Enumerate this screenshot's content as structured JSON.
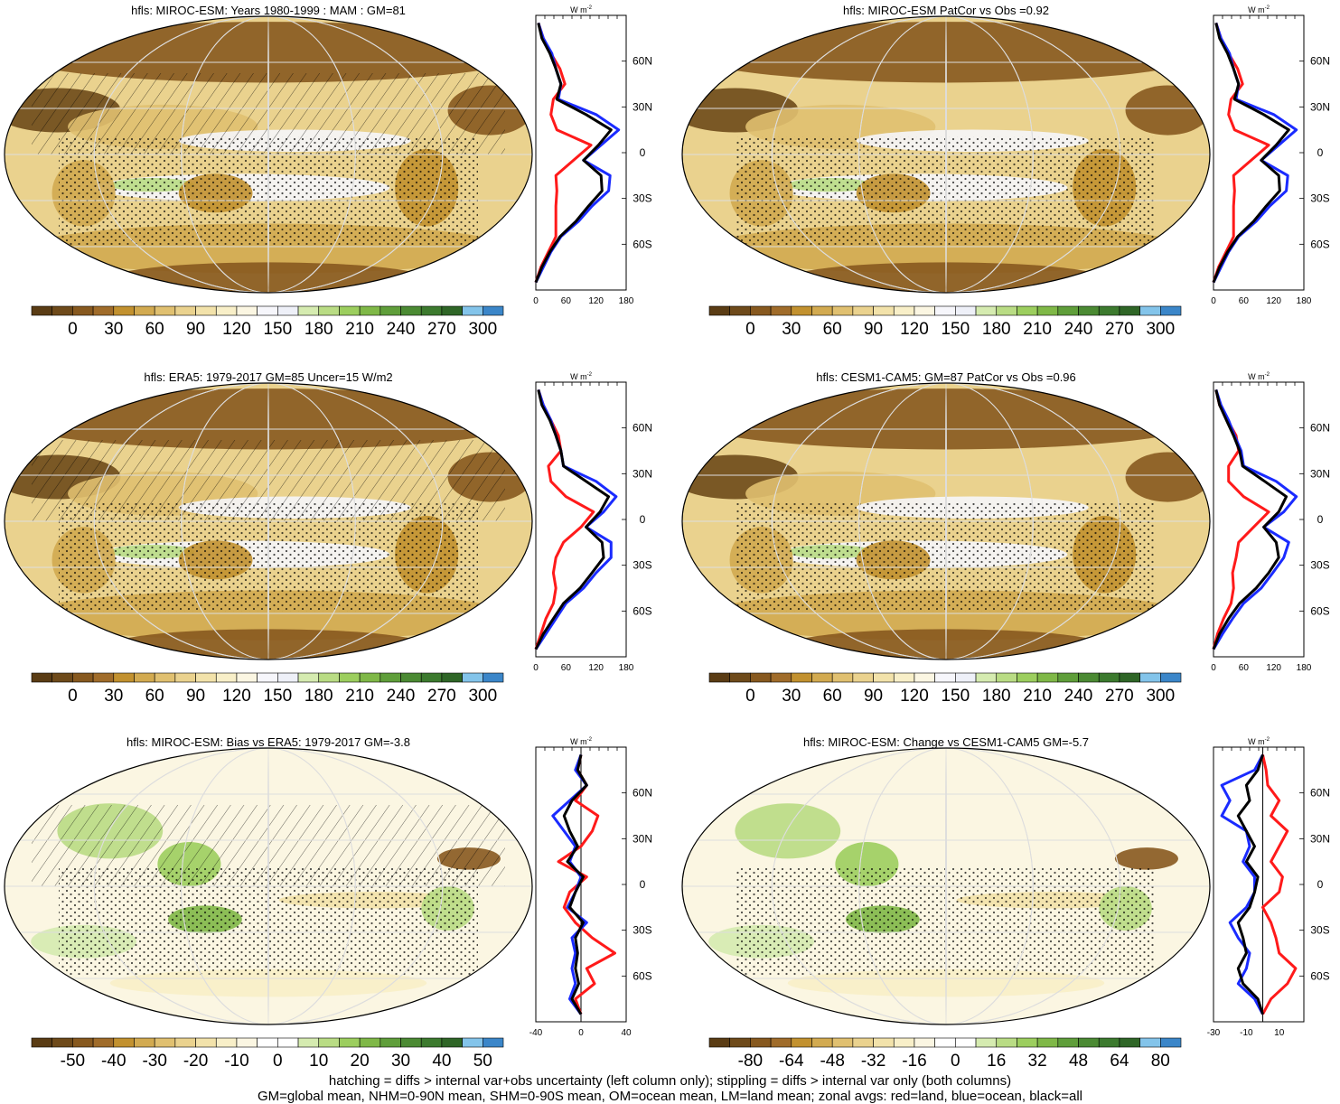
{
  "palettes": {
    "abs": [
      "#5a3c14",
      "#6e4a1a",
      "#87591f",
      "#a06c2a",
      "#c2912f",
      "#d2aa50",
      "#e0c070",
      "#ead28e",
      "#f2e2aa",
      "#f8efc8",
      "#fbf6e2",
      "#f6f6fb",
      "#eef0f8",
      "#d5ebb0",
      "#b9dc84",
      "#9cce5e",
      "#7fb847",
      "#5f9e3a",
      "#4b8a33",
      "#3c7a2e",
      "#2f6627",
      "#83c4ea",
      "#3b86c9"
    ],
    "diff": [
      "#5a3c14",
      "#6e4a1a",
      "#87591f",
      "#a06c2a",
      "#c2912f",
      "#d2aa50",
      "#e0c070",
      "#ead28e",
      "#f2e2aa",
      "#f8efc8",
      "#fbf6e2",
      "#ffffff",
      "#ffffff",
      "#d5ebb0",
      "#b9dc84",
      "#9cce5e",
      "#7fb847",
      "#5f9e3a",
      "#4b8a33",
      "#3c7a2e",
      "#2f6627",
      "#83c4ea",
      "#3b86c9"
    ],
    "line_colors": {
      "land": "#ff1a1a",
      "ocean": "#1a2bff",
      "all": "#000000"
    }
  },
  "lat_ticks": [
    "60N",
    "30N",
    "0",
    "30S",
    "60S"
  ],
  "units": "W m",
  "units_exp": "-2",
  "footer": {
    "line1": "hatching = diffs > internal var+obs uncertainty (left column only); stippling = diffs > internal var only (both columns)",
    "line2": "GM=global mean, NHM=0-90N mean, SHM=0-90S mean, OM=ocean mean, LM=land mean; zonal avgs: red=land, blue=ocean, black=all"
  },
  "chart_data": [
    {
      "type": "heatmap",
      "title": "hfls: MIROC-ESM: Years 1980-1999 : MAM : GM=81",
      "colorbar": {
        "palette": "abs",
        "labels": [
          "0",
          "30",
          "60",
          "90",
          "120",
          "150",
          "180",
          "210",
          "240",
          "270",
          "300"
        ]
      },
      "zonal": {
        "type": "line",
        "xticks": [
          "0",
          "60",
          "120",
          "180"
        ],
        "xlim": [
          0,
          180
        ],
        "ylim": [
          -90,
          90
        ],
        "lat": [
          -85,
          -75,
          -65,
          -55,
          -45,
          -35,
          -25,
          -15,
          -5,
          5,
          15,
          25,
          35,
          45,
          55,
          65,
          75,
          85
        ],
        "land": [
          0,
          10,
          25,
          40,
          40,
          40,
          42,
          40,
          75,
          110,
          42,
          30,
          35,
          58,
          48,
          30,
          15,
          5
        ],
        "ocean": [
          0,
          15,
          30,
          50,
          85,
          112,
          145,
          148,
          95,
          130,
          165,
          120,
          45,
          50,
          40,
          32,
          15,
          5
        ],
        "all": [
          0,
          12,
          28,
          48,
          80,
          105,
          132,
          130,
          95,
          125,
          150,
          100,
          42,
          50,
          40,
          28,
          12,
          5
        ]
      }
    },
    {
      "type": "heatmap",
      "title": "hfls: MIROC-ESM PatCor vs Obs =0.92",
      "colorbar": {
        "palette": "abs",
        "labels": [
          "0",
          "30",
          "60",
          "90",
          "120",
          "150",
          "180",
          "210",
          "240",
          "270",
          "300"
        ]
      },
      "zonal": {
        "type": "line",
        "xticks": [
          "0",
          "60",
          "120",
          "180"
        ],
        "xlim": [
          0,
          180
        ],
        "ylim": [
          -90,
          90
        ],
        "lat": [
          -85,
          -75,
          -65,
          -55,
          -45,
          -35,
          -25,
          -15,
          -5,
          5,
          15,
          25,
          35,
          45,
          55,
          65,
          75,
          85
        ],
        "land": [
          0,
          10,
          25,
          40,
          40,
          40,
          42,
          40,
          75,
          110,
          42,
          30,
          35,
          58,
          48,
          30,
          15,
          5
        ],
        "ocean": [
          0,
          15,
          30,
          50,
          85,
          112,
          145,
          148,
          95,
          130,
          165,
          120,
          45,
          50,
          40,
          32,
          15,
          5
        ],
        "all": [
          0,
          12,
          28,
          48,
          80,
          105,
          132,
          130,
          95,
          125,
          150,
          100,
          42,
          50,
          40,
          28,
          12,
          5
        ]
      }
    },
    {
      "type": "heatmap",
      "title": "hfls: ERA5: 1979-2017 GM=85 Uncer=15 W/m2",
      "colorbar": {
        "palette": "abs",
        "labels": [
          "0",
          "30",
          "60",
          "90",
          "120",
          "150",
          "180",
          "210",
          "240",
          "270",
          "300"
        ]
      },
      "zonal": {
        "type": "line",
        "xticks": [
          "0",
          "60",
          "120",
          "180"
        ],
        "xlim": [
          0,
          180
        ],
        "ylim": [
          -90,
          90
        ],
        "lat": [
          -85,
          -75,
          -65,
          -55,
          -45,
          -35,
          -25,
          -15,
          -5,
          5,
          15,
          25,
          35,
          45,
          55,
          65,
          75,
          85
        ],
        "land": [
          0,
          10,
          20,
          35,
          40,
          35,
          40,
          55,
          90,
          115,
          60,
          30,
          25,
          50,
          45,
          30,
          15,
          5
        ],
        "ocean": [
          0,
          20,
          40,
          60,
          95,
          120,
          150,
          150,
          100,
          135,
          160,
          120,
          55,
          50,
          40,
          30,
          15,
          5
        ],
        "all": [
          0,
          15,
          35,
          55,
          88,
          112,
          135,
          132,
          100,
          128,
          145,
          100,
          55,
          50,
          40,
          28,
          12,
          5
        ]
      }
    },
    {
      "type": "heatmap",
      "title": "hfls: CESM1-CAM5: GM=87 PatCor vs Obs =0.96",
      "colorbar": {
        "palette": "abs",
        "labels": [
          "0",
          "30",
          "60",
          "90",
          "120",
          "150",
          "180",
          "210",
          "240",
          "270",
          "300"
        ]
      },
      "zonal": {
        "type": "line",
        "xticks": [
          "0",
          "60",
          "120",
          "180"
        ],
        "xlim": [
          0,
          180
        ],
        "ylim": [
          -90,
          90
        ],
        "lat": [
          -85,
          -75,
          -65,
          -55,
          -45,
          -35,
          -25,
          -15,
          -5,
          5,
          15,
          25,
          35,
          45,
          55,
          65,
          75,
          85
        ],
        "land": [
          0,
          8,
          20,
          35,
          40,
          38,
          45,
          50,
          80,
          110,
          60,
          30,
          30,
          50,
          45,
          28,
          12,
          5
        ],
        "ocean": [
          0,
          18,
          38,
          60,
          95,
          118,
          140,
          150,
          100,
          140,
          165,
          125,
          60,
          55,
          42,
          30,
          15,
          5
        ],
        "all": [
          0,
          12,
          30,
          52,
          85,
          110,
          130,
          125,
          100,
          130,
          145,
          102,
          58,
          52,
          40,
          26,
          12,
          5
        ]
      }
    },
    {
      "type": "heatmap",
      "title": "hfls: MIROC-ESM: Bias vs ERA5: 1979-2017 GM=-3.8",
      "colorbar": {
        "palette": "diff",
        "labels": [
          "-50",
          "-40",
          "-30",
          "-20",
          "-10",
          "0",
          "10",
          "20",
          "30",
          "40",
          "50"
        ]
      },
      "zonal": {
        "type": "line",
        "xticks": [
          "-40",
          "0",
          "40"
        ],
        "xlim": [
          -40,
          40
        ],
        "ylim": [
          -90,
          90
        ],
        "lat": [
          -85,
          -75,
          -65,
          -55,
          -45,
          -35,
          -25,
          -15,
          -5,
          5,
          15,
          25,
          35,
          45,
          55,
          65,
          75,
          85
        ],
        "land": [
          0,
          -5,
          12,
          5,
          30,
          10,
          -5,
          -15,
          -10,
          5,
          -20,
          0,
          10,
          15,
          -5,
          5,
          -3,
          0
        ],
        "ocean": [
          0,
          -10,
          -5,
          -8,
          -5,
          -8,
          5,
          -12,
          -5,
          0,
          -10,
          -5,
          -15,
          -25,
          -10,
          5,
          -5,
          0
        ],
        "all": [
          0,
          -8,
          -2,
          -5,
          -3,
          -5,
          2,
          -10,
          -5,
          2,
          -12,
          -3,
          -10,
          -15,
          -8,
          5,
          -3,
          0
        ]
      }
    },
    {
      "type": "heatmap",
      "title": "hfls: MIROC-ESM: Change vs CESM1-CAM5 GM=-5.7",
      "colorbar": {
        "palette": "diff",
        "labels": [
          "-80",
          "-64",
          "-48",
          "-32",
          "-16",
          "0",
          "16",
          "32",
          "48",
          "64",
          "80"
        ]
      },
      "zonal": {
        "type": "line",
        "xticks": [
          "-30",
          "-10",
          "10"
        ],
        "xlim": [
          -30,
          25
        ],
        "ylim": [
          -90,
          90
        ],
        "lat": [
          -85,
          -75,
          -65,
          -55,
          -45,
          -35,
          -25,
          -15,
          -5,
          5,
          15,
          25,
          35,
          45,
          55,
          65,
          75,
          85
        ],
        "land": [
          0,
          5,
          15,
          20,
          10,
          8,
          5,
          0,
          10,
          12,
          5,
          10,
          15,
          5,
          10,
          3,
          2,
          0
        ],
        "ocean": [
          0,
          -5,
          -15,
          -10,
          -8,
          -15,
          -20,
          -10,
          -5,
          -5,
          -12,
          -8,
          -10,
          -25,
          -20,
          -25,
          -5,
          0
        ],
        "all": [
          0,
          -3,
          -12,
          -15,
          -10,
          -12,
          -15,
          -8,
          -5,
          -3,
          -10,
          -5,
          -10,
          -15,
          -8,
          -10,
          -3,
          0
        ]
      }
    }
  ]
}
